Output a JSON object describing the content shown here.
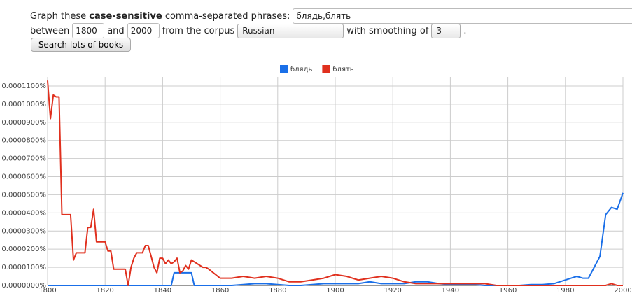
{
  "form": {
    "prefix": "Graph these",
    "bold": "case-sensitive",
    "suffix": "comma-separated phrases:",
    "phrases": "блядь,блять",
    "between": "between",
    "start_year": "1800",
    "and": "and",
    "end_year": "2000",
    "corpus_label": "from the corpus",
    "corpus": "Russian",
    "smoothing_label": "with smoothing of",
    "smoothing": "3",
    "period": ".",
    "button": "Search lots of books"
  },
  "chart_data": {
    "type": "line",
    "legend": "top",
    "grid": true,
    "x": [
      1800,
      1801,
      1802,
      1803,
      1804,
      1805,
      1806,
      1807,
      1808,
      1809,
      1810,
      1811,
      1812,
      1813,
      1814,
      1815,
      1816,
      1817,
      1818,
      1819,
      1820,
      1821,
      1822,
      1823,
      1824,
      1825,
      1826,
      1827,
      1828,
      1829,
      1830,
      1831,
      1832,
      1833,
      1834,
      1835,
      1836,
      1837,
      1838,
      1839,
      1840,
      1841,
      1842,
      1843,
      1844,
      1845,
      1846,
      1847,
      1848,
      1849,
      1850,
      1851,
      1852,
      1853,
      1854,
      1855,
      1856,
      1860,
      1864,
      1868,
      1872,
      1876,
      1880,
      1884,
      1888,
      1892,
      1896,
      1900,
      1904,
      1908,
      1912,
      1916,
      1920,
      1924,
      1928,
      1932,
      1936,
      1940,
      1944,
      1948,
      1952,
      1956,
      1960,
      1964,
      1968,
      1972,
      1976,
      1978,
      1980,
      1982,
      1984,
      1986,
      1988,
      1990,
      1992,
      1994,
      1996,
      1998,
      2000
    ],
    "series": [
      {
        "name": "блядь",
        "color": "#1a6fe8",
        "values": [
          0,
          0,
          0,
          0,
          0,
          0,
          0,
          0,
          0,
          0,
          0,
          0,
          0,
          0,
          0,
          0,
          0,
          0,
          0,
          0,
          0,
          0,
          0,
          0,
          0,
          0,
          0,
          0,
          0,
          0,
          0,
          0,
          0,
          0,
          0,
          0,
          0,
          0,
          0,
          0,
          0,
          0,
          0,
          0,
          7e-06,
          7e-06,
          7e-06,
          7e-06,
          7e-06,
          7e-06,
          7e-06,
          0,
          0,
          0,
          0,
          0,
          0,
          0,
          0,
          5e-07,
          1e-06,
          1e-06,
          5e-07,
          0,
          0,
          5e-07,
          1e-06,
          1e-06,
          1e-06,
          1e-06,
          2e-06,
          1e-06,
          1e-06,
          1e-06,
          2e-06,
          2e-06,
          1e-06,
          5e-07,
          5e-07,
          5e-07,
          0,
          0,
          0,
          0,
          5e-07,
          5e-07,
          1e-06,
          2e-06,
          3e-06,
          4e-06,
          5e-06,
          4e-06,
          4e-06,
          1e-05,
          1.6e-05,
          3.9e-05,
          4.3e-05,
          4.2e-05,
          5.1e-05
        ]
      },
      {
        "name": "блять",
        "color": "#e0301e",
        "values": [
          0.000113,
          9.2e-05,
          0.000105,
          0.000104,
          0.000104,
          3.9e-05,
          3.9e-05,
          3.9e-05,
          3.9e-05,
          1.4e-05,
          1.8e-05,
          1.8e-05,
          1.8e-05,
          1.8e-05,
          3.2e-05,
          3.2e-05,
          4.2e-05,
          2.4e-05,
          2.4e-05,
          2.4e-05,
          2.4e-05,
          1.9e-05,
          1.9e-05,
          9e-06,
          9e-06,
          9e-06,
          9e-06,
          9e-06,
          0,
          1e-05,
          1.5e-05,
          1.8e-05,
          1.8e-05,
          1.8e-05,
          2.2e-05,
          2.2e-05,
          1.6e-05,
          1e-05,
          7e-06,
          1.5e-05,
          1.5e-05,
          1.2e-05,
          1.4e-05,
          1.2e-05,
          1.3e-05,
          1.5e-05,
          7e-06,
          8e-06,
          1.1e-05,
          9e-06,
          1.4e-05,
          1.3e-05,
          1.2e-05,
          1.1e-05,
          1e-05,
          1e-05,
          9e-06,
          4e-06,
          4e-06,
          5e-06,
          4e-06,
          5e-06,
          4e-06,
          2e-06,
          2e-06,
          3e-06,
          4e-06,
          6e-06,
          5e-06,
          3e-06,
          4e-06,
          5e-06,
          4e-06,
          2e-06,
          1e-06,
          1e-06,
          1e-06,
          1e-06,
          1e-06,
          1e-06,
          1e-06,
          0,
          0,
          0,
          0,
          0,
          0,
          0,
          0,
          0,
          0,
          0,
          0,
          0,
          0,
          0,
          1e-06,
          0,
          0
        ]
      }
    ],
    "xlim": [
      1800,
      2000
    ],
    "xticks": [
      1800,
      1820,
      1840,
      1860,
      1880,
      1900,
      1920,
      1940,
      1960,
      1980,
      2000
    ],
    "ylim": [
      0,
      0.000115
    ],
    "yticks": [
      {
        "value": 0,
        "label": "0.0000000%"
      },
      {
        "value": 1e-05,
        "label": "0.0000100%"
      },
      {
        "value": 2e-05,
        "label": "0.0000200%"
      },
      {
        "value": 3e-05,
        "label": "0.0000300%"
      },
      {
        "value": 4e-05,
        "label": "0.0000400%"
      },
      {
        "value": 5e-05,
        "label": "0.0000500%"
      },
      {
        "value": 6e-05,
        "label": "0.0000600%"
      },
      {
        "value": 7e-05,
        "label": "0.0000700%"
      },
      {
        "value": 8e-05,
        "label": "0.0000800%"
      },
      {
        "value": 9e-05,
        "label": "0.0000900%"
      },
      {
        "value": 0.0001,
        "label": "0.0001000%"
      },
      {
        "value": 0.00011,
        "label": "0.0001100%"
      }
    ]
  }
}
